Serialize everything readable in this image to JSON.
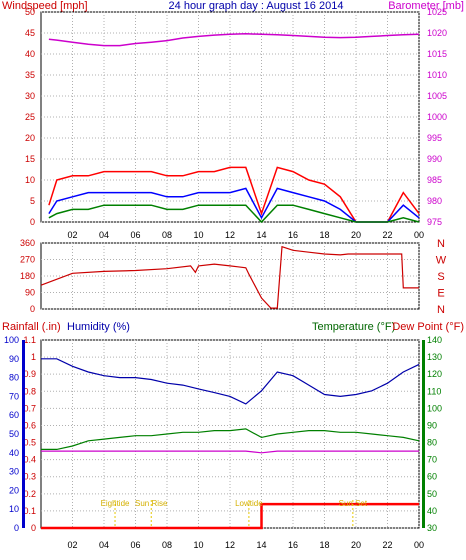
{
  "header": {
    "left_label": "Windspeed [mph]",
    "title": "24 hour graph day : August 16 2014",
    "right_label": "Barometer [mb]"
  },
  "wind_panel": {
    "left_ticks": [
      "0",
      "5",
      "10",
      "15",
      "20",
      "25",
      "30",
      "35",
      "40",
      "45",
      "50"
    ],
    "right_ticks": [
      "975",
      "980",
      "985",
      "990",
      "995",
      "1000",
      "1005",
      "1010",
      "1015",
      "1020",
      "1025"
    ],
    "colors": {
      "gust": "#ff0000",
      "average": "#0000ff",
      "min": "#008000",
      "barometer": "#cc00cc",
      "left_axis": "#cc0000",
      "right_axis": "#cc00cc"
    }
  },
  "direction_panel": {
    "left_ticks": [
      "0",
      "90",
      "180",
      "270",
      "360"
    ],
    "compass": [
      "N",
      "W",
      "S",
      "E",
      "N"
    ],
    "color": "#cc0000"
  },
  "bottom_panel": {
    "labels": {
      "rainfall": "Rainfall (.in)",
      "humidity": "Humidity (%)",
      "temperature": "Temperature (°F)",
      "dewpoint": "Dew Point (°F)"
    },
    "humidity_ticks": [
      "0",
      "10",
      "20",
      "30",
      "40",
      "50",
      "60",
      "70",
      "80",
      "90",
      "100"
    ],
    "rain_ticks": [
      "0",
      "0.1",
      "0.2",
      "0.3",
      "0.4",
      "0.5",
      "0.6",
      "0.7",
      "0.8",
      "0.9",
      "1",
      "1.1"
    ],
    "temp_ticks": [
      "30",
      "40",
      "50",
      "60",
      "70",
      "80",
      "90",
      "100",
      "110",
      "120",
      "130",
      "140"
    ],
    "colors": {
      "rain": "#ff0000",
      "humidity": "#0000aa",
      "temperature": "#008000",
      "dewpoint": "#cc00cc",
      "rain_axis": "#cc0000",
      "temp_axis": "#008000",
      "humidity_axis": "#0000cc"
    }
  },
  "x_ticks": [
    "02",
    "04",
    "06",
    "08",
    "10",
    "12",
    "14",
    "16",
    "18",
    "20",
    "22",
    "00"
  ],
  "astro_marks": [
    {
      "label": "Eightide",
      "hour": 4.7
    },
    {
      "label": "Sun Rise",
      "hour": 7.0
    },
    {
      "label": "Lowtide",
      "hour": 13.2
    },
    {
      "label": "Sun Set",
      "hour": 19.8
    }
  ],
  "chart_data": [
    {
      "type": "line",
      "title": "24 hour graph day : August 16 2014",
      "xlabel": "",
      "ylabel": "Windspeed [mph]",
      "y2label": "Barometer [mb]",
      "x": [
        0.5,
        1,
        2,
        3,
        4,
        5,
        6,
        7,
        8,
        9,
        10,
        11,
        12,
        13,
        14,
        15,
        16,
        17,
        18,
        19,
        20,
        21,
        22,
        23,
        24
      ],
      "ylim": [
        0,
        50
      ],
      "y2lim": [
        975,
        1025
      ],
      "series": [
        {
          "name": "Gust",
          "axis": "left",
          "values": [
            4,
            10,
            11,
            11,
            12,
            12,
            12,
            12,
            11,
            11,
            12,
            12,
            13,
            13,
            2,
            13,
            12,
            10,
            9,
            6,
            0,
            0,
            0,
            7,
            2
          ]
        },
        {
          "name": "Average",
          "axis": "left",
          "values": [
            2,
            5,
            6,
            7,
            7,
            7,
            7,
            7,
            6,
            6,
            7,
            7,
            7,
            8,
            1,
            8,
            7,
            6,
            5,
            3,
            0,
            0,
            0,
            4,
            1
          ]
        },
        {
          "name": "Min",
          "axis": "left",
          "values": [
            1,
            2,
            3,
            3,
            4,
            4,
            4,
            4,
            3,
            3,
            4,
            4,
            4,
            4,
            0,
            4,
            4,
            3,
            2,
            1,
            0,
            0,
            0,
            1,
            0
          ]
        },
        {
          "name": "Barometer",
          "axis": "right",
          "values": [
            1018.5,
            1018.3,
            1017.8,
            1017.3,
            1017.0,
            1017.0,
            1017.5,
            1017.8,
            1018.2,
            1018.8,
            1019.2,
            1019.5,
            1019.7,
            1019.8,
            1019.7,
            1019.6,
            1019.4,
            1019.2,
            1019.0,
            1018.9,
            1019.0,
            1019.2,
            1019.4,
            1019.6,
            1019.7
          ]
        }
      ]
    },
    {
      "type": "line",
      "ylabel": "Wind direction",
      "x": [
        0,
        2,
        4,
        6,
        8,
        9.5,
        9.8,
        10,
        11,
        12,
        12.5,
        13,
        13.2,
        14,
        14.6,
        15,
        15.3,
        16,
        17,
        18,
        19,
        19.5,
        20,
        21,
        22,
        22.9,
        23,
        24
      ],
      "ylim": [
        0,
        360
      ],
      "series": [
        {
          "name": "Direction",
          "values": [
            130,
            195,
            205,
            210,
            220,
            235,
            200,
            235,
            245,
            235,
            230,
            225,
            190,
            60,
            5,
            5,
            340,
            320,
            310,
            300,
            295,
            300,
            300,
            300,
            300,
            300,
            115,
            115
          ]
        }
      ]
    },
    {
      "type": "line",
      "x": [
        0,
        1,
        2,
        3,
        4,
        5,
        6,
        7,
        8,
        9,
        10,
        11,
        12,
        13,
        14,
        15,
        16,
        17,
        18,
        19,
        20,
        21,
        22,
        23,
        24
      ],
      "ylim": [
        0,
        100
      ],
      "series": [
        {
          "name": "Humidity",
          "axis": "humidity",
          "values": [
            90,
            90,
            86,
            83,
            81,
            80,
            80,
            79,
            77,
            76,
            74,
            72,
            70,
            66,
            73,
            83,
            81,
            76,
            71,
            70,
            71,
            73,
            77,
            83,
            87
          ]
        },
        {
          "name": "Temperature",
          "axis": "temperature",
          "unit": "°F",
          "values": [
            76,
            76,
            78,
            81,
            82,
            83,
            84,
            84,
            85,
            86,
            86,
            87,
            87,
            88,
            83,
            85,
            86,
            87,
            87,
            86,
            86,
            85,
            84,
            83,
            81
          ]
        },
        {
          "name": "Dew Point",
          "axis": "temperature",
          "unit": "°F",
          "values": [
            75,
            75,
            75,
            75,
            75,
            75,
            75,
            75,
            75,
            75,
            75,
            75,
            75,
            75,
            74,
            75,
            75,
            75,
            75,
            75,
            75,
            75,
            75,
            75,
            75
          ]
        },
        {
          "name": "Rainfall",
          "axis": "rain",
          "unit": "in",
          "values": [
            0,
            0,
            0,
            0,
            0,
            0,
            0,
            0,
            0,
            0,
            0,
            0,
            0,
            0,
            0.14,
            0.14,
            0.14,
            0.14,
            0.14,
            0.14,
            0.14,
            0.14,
            0.14,
            0.14,
            0.14
          ]
        }
      ]
    }
  ]
}
